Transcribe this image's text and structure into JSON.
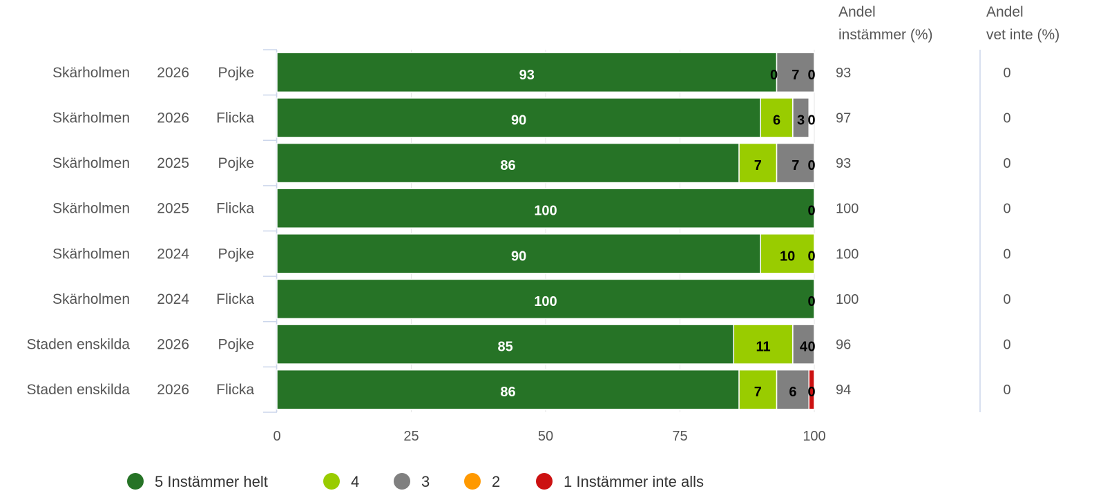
{
  "chart_data": {
    "type": "bar",
    "orientation": "horizontal",
    "stacked": true,
    "rows": [
      {
        "school": "Skärholmen",
        "year": "2026",
        "gender": "Pojke",
        "values": [
          93,
          0,
          7,
          0,
          0
        ],
        "labels": [
          "93",
          "0",
          "7",
          "0",
          ""
        ],
        "andel_instammer": "93",
        "andel_vet_inte": "0"
      },
      {
        "school": "Skärholmen",
        "year": "2026",
        "gender": "Flicka",
        "values": [
          90,
          6,
          3,
          0,
          0
        ],
        "labels": [
          "90",
          "6",
          "3",
          "0",
          ""
        ],
        "andel_instammer": "97",
        "andel_vet_inte": "0"
      },
      {
        "school": "Skärholmen",
        "year": "2025",
        "gender": "Pojke",
        "values": [
          86,
          7,
          7,
          0,
          0
        ],
        "labels": [
          "86",
          "7",
          "7",
          "0",
          ""
        ],
        "andel_instammer": "93",
        "andel_vet_inte": "0"
      },
      {
        "school": "Skärholmen",
        "year": "2025",
        "gender": "Flicka",
        "values": [
          100,
          0,
          0,
          0,
          0
        ],
        "labels": [
          "100",
          "",
          "",
          "0",
          ""
        ],
        "andel_instammer": "100",
        "andel_vet_inte": "0"
      },
      {
        "school": "Skärholmen",
        "year": "2024",
        "gender": "Pojke",
        "values": [
          90,
          10,
          0,
          0,
          0
        ],
        "labels": [
          "90",
          "10",
          "",
          "0",
          ""
        ],
        "andel_instammer": "100",
        "andel_vet_inte": "0"
      },
      {
        "school": "Skärholmen",
        "year": "2024",
        "gender": "Flicka",
        "values": [
          100,
          0,
          0,
          0,
          0
        ],
        "labels": [
          "100",
          "",
          "",
          "0",
          ""
        ],
        "andel_instammer": "100",
        "andel_vet_inte": "0"
      },
      {
        "school": "Staden enskilda",
        "year": "2026",
        "gender": "Pojke",
        "values": [
          85,
          11,
          4,
          0,
          0
        ],
        "labels": [
          "85",
          "11",
          "4",
          "0",
          ""
        ],
        "andel_instammer": "96",
        "andel_vet_inte": "0"
      },
      {
        "school": "Staden enskilda",
        "year": "2026",
        "gender": "Flicka",
        "values": [
          86,
          7,
          6,
          0,
          1
        ],
        "labels": [
          "86",
          "7",
          "6",
          "0",
          ""
        ],
        "andel_instammer": "94",
        "andel_vet_inte": "0"
      }
    ],
    "series": [
      {
        "name": "5 Instämmer helt",
        "color": "#267326"
      },
      {
        "name": "4",
        "color": "#99cc00"
      },
      {
        "name": "3",
        "color": "#808080"
      },
      {
        "name": "2",
        "color": "#ff9900"
      },
      {
        "name": "1 Instämmer inte alls",
        "color": "#cc1111"
      }
    ],
    "label_colors": [
      "#ffffff",
      "#000000",
      "#000000",
      "#000000",
      "#ffffff"
    ],
    "xlim": [
      0,
      100
    ],
    "xticks": [
      "0",
      "25",
      "50",
      "75",
      "100"
    ],
    "grid": true,
    "column_headers": {
      "andel_instammer": [
        "Andel",
        "instämmer (%)"
      ],
      "andel_vet_inte": [
        "Andel",
        "vet inte (%)"
      ]
    },
    "legend_position": "bottom"
  }
}
